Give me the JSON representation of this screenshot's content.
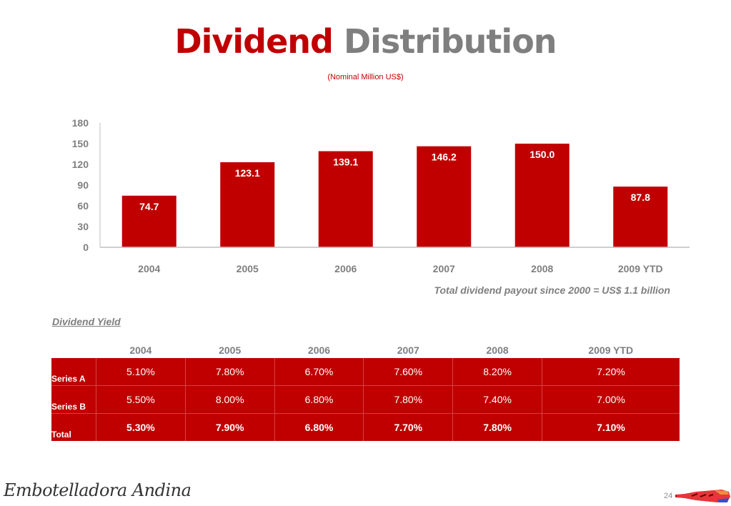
{
  "header": {
    "title_red": "Dividend",
    "title_gray": "Distribution",
    "subtitle": "(Nominal Million US$)"
  },
  "colors": {
    "accent": "#c00000",
    "gray": "#7f7f7f"
  },
  "chart_data": {
    "type": "bar",
    "title": "Dividend Distribution",
    "subtitle": "(Nominal Million US$)",
    "categories": [
      "2004",
      "2005",
      "2006",
      "2007",
      "2008",
      "2009 YTD"
    ],
    "values": [
      74.7,
      123.1,
      139.1,
      146.2,
      150.0,
      87.8
    ],
    "value_labels": [
      "74.7",
      "123.1",
      "139.1",
      "146.2",
      "150.0",
      "87.8"
    ],
    "ylim": [
      0,
      180
    ],
    "yticks": [
      "0",
      "30",
      "60",
      "90",
      "120",
      "150",
      "180"
    ],
    "ytick_values": [
      0,
      30,
      60,
      90,
      120,
      150,
      180
    ],
    "xlabel": "",
    "ylabel": "",
    "grid": false,
    "legend": "none"
  },
  "note": "Total dividend payout since 2000 = US$ 1.1 billion",
  "yield": {
    "title": "Dividend Yield",
    "columns": [
      "2004",
      "2005",
      "2006",
      "2007",
      "2008",
      "2009 YTD"
    ],
    "rows": [
      {
        "label": "Series A",
        "values": [
          "5.10%",
          "7.80%",
          "6.70%",
          "7.60%",
          "8.20%",
          "7.20%"
        ]
      },
      {
        "label": "Series B",
        "values": [
          "5.50%",
          "8.00%",
          "6.80%",
          "7.80%",
          "7.40%",
          "7.00%"
        ]
      },
      {
        "label": "Total",
        "values": [
          "5.30%",
          "7.90%",
          "6.80%",
          "7.70%",
          "7.80%",
          "7.10%"
        ]
      }
    ]
  },
  "footer": {
    "logo_text": "Embotelladora Andina",
    "page_number": "24",
    "bottle_icon": "bottle-logo-icon"
  }
}
